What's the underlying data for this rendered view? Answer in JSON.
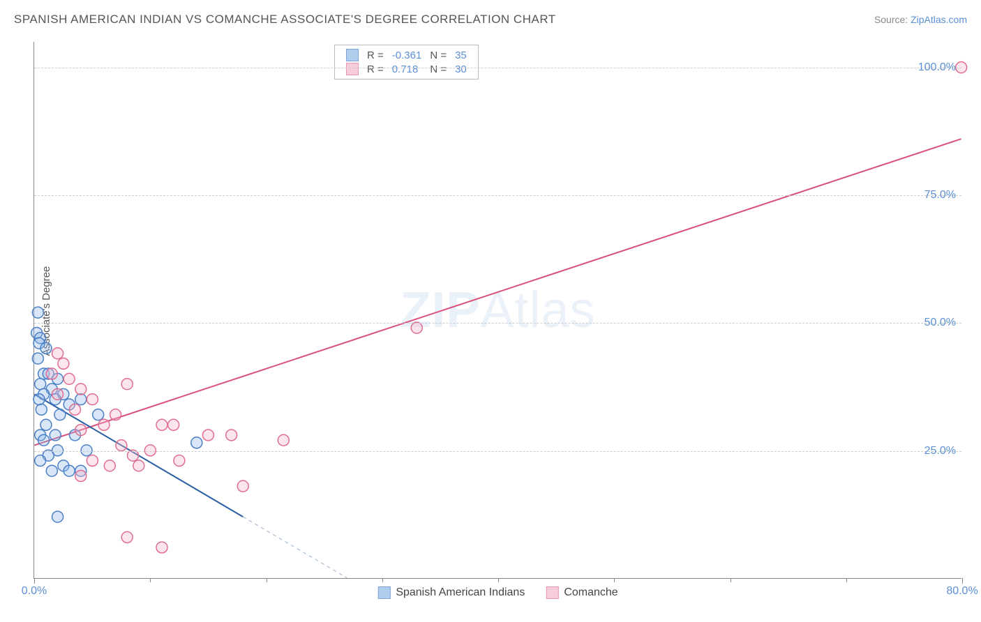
{
  "title": "SPANISH AMERICAN INDIAN VS COMANCHE ASSOCIATE'S DEGREE CORRELATION CHART",
  "source_prefix": "Source: ",
  "source_link": "ZipAtlas.com",
  "watermark_a": "ZIP",
  "watermark_b": "Atlas",
  "chart": {
    "type": "scatter",
    "ylabel": "Associate's Degree",
    "xlim": [
      0,
      80
    ],
    "ylim": [
      0,
      105
    ],
    "xtick_major": [
      0,
      80
    ],
    "xtick_minor": [
      10,
      20,
      30,
      40,
      50,
      60,
      70
    ],
    "ytick_major": [
      25,
      50,
      75,
      100
    ],
    "ytick_label_suffix": "%",
    "xtick_label_suffix": "%",
    "grid_color": "#cccccc",
    "axis_color": "#888888",
    "background_color": "#ffffff",
    "marker_radius": 8,
    "marker_fill_opacity": 0.35,
    "marker_stroke_width": 1.5,
    "line_width": 2,
    "series": [
      {
        "name": "Spanish American Indians",
        "color_fill": "#8fb8e8",
        "color_stroke": "#4a7fc7",
        "line_color": "#2b5fa3",
        "R": "-0.361",
        "N": "35",
        "trend": {
          "x1": 0,
          "y1": 36,
          "x2": 18,
          "y2": 12,
          "dash_x1": 18,
          "dash_y1": 12,
          "dash_x2": 27,
          "dash_y2": 0
        },
        "points": [
          [
            0.3,
            52
          ],
          [
            0.2,
            48
          ],
          [
            0.5,
            47
          ],
          [
            0.4,
            46
          ],
          [
            1.0,
            45
          ],
          [
            0.3,
            43
          ],
          [
            0.8,
            40
          ],
          [
            1.2,
            40
          ],
          [
            2.0,
            39
          ],
          [
            0.5,
            38
          ],
          [
            1.5,
            37
          ],
          [
            0.8,
            36
          ],
          [
            2.5,
            36
          ],
          [
            0.4,
            35
          ],
          [
            1.8,
            35
          ],
          [
            4.0,
            35
          ],
          [
            3.0,
            34
          ],
          [
            0.6,
            33
          ],
          [
            2.2,
            32
          ],
          [
            5.5,
            32
          ],
          [
            1.0,
            30
          ],
          [
            0.5,
            28
          ],
          [
            1.8,
            28
          ],
          [
            3.5,
            28
          ],
          [
            0.8,
            27
          ],
          [
            2.0,
            25
          ],
          [
            4.5,
            25
          ],
          [
            1.2,
            24
          ],
          [
            14.0,
            26.5
          ],
          [
            0.5,
            23
          ],
          [
            2.5,
            22
          ],
          [
            1.5,
            21
          ],
          [
            3.0,
            21
          ],
          [
            4.0,
            21
          ],
          [
            2.0,
            12
          ]
        ]
      },
      {
        "name": "Comanche",
        "color_fill": "#f4b8ca",
        "color_stroke": "#e06c8e",
        "line_color": "#d94f7a",
        "R": "0.718",
        "N": "30",
        "trend": {
          "x1": 0,
          "y1": 26,
          "x2": 80,
          "y2": 86
        },
        "points": [
          [
            80,
            100
          ],
          [
            33,
            49
          ],
          [
            2.0,
            44
          ],
          [
            2.5,
            42
          ],
          [
            1.5,
            40
          ],
          [
            3.0,
            39
          ],
          [
            8.0,
            38
          ],
          [
            4.0,
            37
          ],
          [
            2.0,
            36
          ],
          [
            5.0,
            35
          ],
          [
            3.5,
            33
          ],
          [
            7.0,
            32
          ],
          [
            11.0,
            30
          ],
          [
            12.0,
            30
          ],
          [
            6.0,
            30
          ],
          [
            4.0,
            29
          ],
          [
            15.0,
            28
          ],
          [
            17.0,
            28
          ],
          [
            21.5,
            27
          ],
          [
            7.5,
            26
          ],
          [
            10.0,
            25
          ],
          [
            8.5,
            24
          ],
          [
            5.0,
            23
          ],
          [
            12.5,
            23
          ],
          [
            6.5,
            22
          ],
          [
            9.0,
            22
          ],
          [
            18.0,
            18
          ],
          [
            4.0,
            20
          ],
          [
            11.0,
            6
          ],
          [
            8.0,
            8
          ]
        ]
      }
    ]
  },
  "legend_top_R_label": "R =",
  "legend_top_N_label": "N ="
}
